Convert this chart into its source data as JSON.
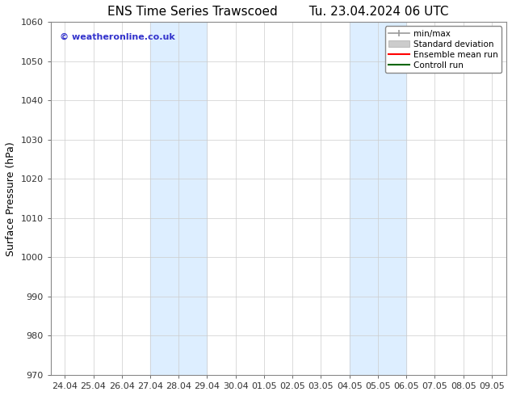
{
  "title_left": "ENS Time Series Trawscoed",
  "title_right": "Tu. 23.04.2024 06 UTC",
  "ylabel": "Surface Pressure (hPa)",
  "ylim": [
    970,
    1060
  ],
  "yticks": [
    970,
    980,
    990,
    1000,
    1010,
    1020,
    1030,
    1040,
    1050,
    1060
  ],
  "x_labels": [
    "24.04",
    "25.04",
    "26.04",
    "27.04",
    "28.04",
    "29.04",
    "30.04",
    "01.05",
    "02.05",
    "03.05",
    "04.05",
    "05.05",
    "06.05",
    "07.05",
    "08.05",
    "09.05"
  ],
  "shaded_regions": [
    {
      "x_start_label": "27.04",
      "x_end_label": "29.04"
    },
    {
      "x_start_label": "04.05",
      "x_end_label": "06.05"
    }
  ],
  "shaded_color": "#ddeeff",
  "copyright_text": "© weatheronline.co.uk",
  "copyright_color": "#3333cc",
  "legend_items": [
    {
      "label": "min/max",
      "color": "#aaaaaa"
    },
    {
      "label": "Standard deviation",
      "color": "#cccccc"
    },
    {
      "label": "Ensemble mean run",
      "color": "#ff0000"
    },
    {
      "label": "Controll run",
      "color": "#006600"
    }
  ],
  "background_color": "#ffffff",
  "grid_color": "#cccccc",
  "title_fontsize": 11,
  "axis_label_fontsize": 9,
  "tick_fontsize": 8,
  "legend_fontsize": 7.5
}
